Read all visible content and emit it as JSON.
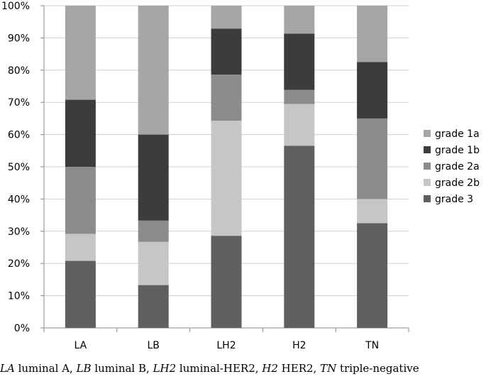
{
  "chart_data": {
    "type": "bar",
    "stacked": true,
    "normalized": true,
    "categories": [
      "LA",
      "LB",
      "LH2",
      "H2",
      "TN"
    ],
    "yticks": [
      "0%",
      "10%",
      "20%",
      "30%",
      "40%",
      "50%",
      "60%",
      "70%",
      "80%",
      "90%",
      "100%"
    ],
    "ylim": [
      0,
      100
    ],
    "legend_position": "right",
    "series": [
      {
        "name": "grade 3",
        "color": "#5f5f5f",
        "values": [
          20.8,
          13.3,
          28.6,
          56.5,
          32.5
        ]
      },
      {
        "name": "grade 2b",
        "color": "#c6c6c6",
        "values": [
          8.4,
          13.4,
          35.7,
          13.0,
          7.5
        ]
      },
      {
        "name": "grade 2a",
        "color": "#8c8c8c",
        "values": [
          20.8,
          6.6,
          14.3,
          4.4,
          25.0
        ]
      },
      {
        "name": "grade 1b",
        "color": "#3c3c3c",
        "values": [
          20.8,
          26.7,
          14.3,
          17.4,
          17.5
        ]
      },
      {
        "name": "grade 1a",
        "color": "#a6a6a6",
        "values": [
          29.2,
          40.0,
          7.1,
          8.7,
          17.5
        ]
      }
    ],
    "legend_order": [
      "grade 1a",
      "grade 1b",
      "grade 2a",
      "grade 2b",
      "grade 3"
    ]
  },
  "caption": [
    {
      "abbr": "LA",
      "text": " luminal A, "
    },
    {
      "abbr": "LB",
      "text": " luminal B, "
    },
    {
      "abbr": "LH2",
      "text": " luminal-HER2, "
    },
    {
      "abbr": "H2",
      "text": " HER2, "
    },
    {
      "abbr": "TN",
      "text": " triple-negative"
    }
  ]
}
